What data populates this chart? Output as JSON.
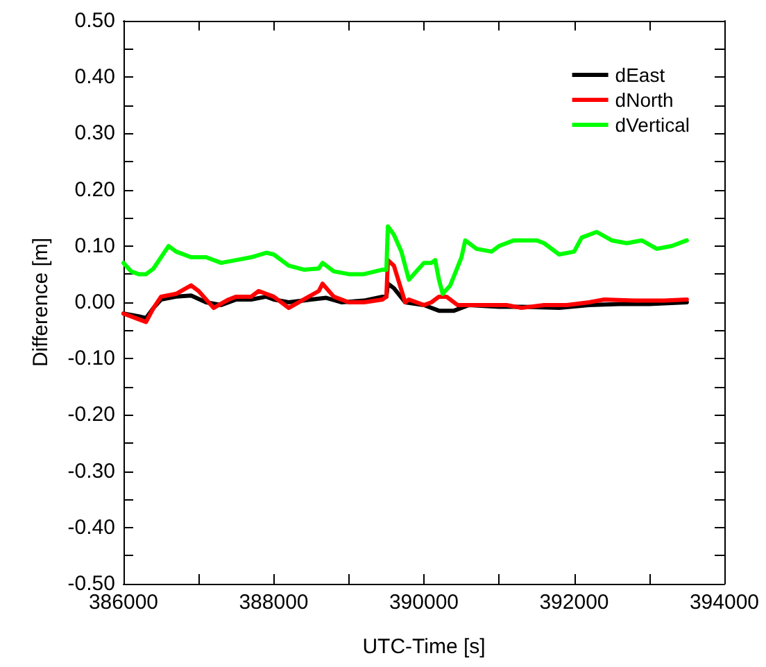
{
  "chart_data": {
    "type": "line",
    "xlabel": "UTC-Time [s]",
    "ylabel": "Difference [m]",
    "xlim": [
      386000,
      394000
    ],
    "xticks": [
      386000,
      {
        "value": 387000,
        "label": null
      },
      388000,
      {
        "value": 389000,
        "label": null
      },
      390000,
      {
        "value": 391000,
        "label": null
      },
      392000,
      {
        "value": 393000,
        "label": null
      },
      394000
    ],
    "ylim": [
      -0.5,
      0.5
    ],
    "yticks": [
      {
        "value": -0.5,
        "label": "-0.50"
      },
      {
        "value": -0.45,
        "label": null
      },
      {
        "value": -0.4,
        "label": "-0.40"
      },
      {
        "value": -0.35,
        "label": null
      },
      {
        "value": -0.3,
        "label": "-0.30"
      },
      {
        "value": -0.25,
        "label": null
      },
      {
        "value": -0.2,
        "label": "-0.20"
      },
      {
        "value": -0.15,
        "label": null
      },
      {
        "value": -0.1,
        "label": "-0.10"
      },
      {
        "value": -0.05,
        "label": null
      },
      {
        "value": 0,
        "label": "0.00"
      },
      {
        "value": 0.05,
        "label": null
      },
      {
        "value": 0.1,
        "label": "0.10"
      },
      {
        "value": 0.15,
        "label": null
      },
      {
        "value": 0.2,
        "label": "0.20"
      },
      {
        "value": 0.25,
        "label": null
      },
      {
        "value": 0.3,
        "label": "0.30"
      },
      {
        "value": 0.35,
        "label": null
      },
      {
        "value": 0.4,
        "label": "0.40"
      },
      {
        "value": 0.45,
        "label": null
      },
      {
        "value": 0.5,
        "label": "0.50"
      }
    ],
    "grid": false,
    "legend": "top right",
    "marker": "none",
    "line_style": "solid",
    "series": [
      {
        "name": "dEast",
        "color": "#000000",
        "x": [
          386000,
          386200,
          386300,
          386400,
          386500,
          386700,
          386900,
          387100,
          387300,
          387500,
          387700,
          387900,
          388000,
          388200,
          388500,
          388700,
          388900,
          389200,
          389450,
          389500,
          389520,
          389600,
          389750,
          390000,
          390200,
          390400,
          390600,
          391000,
          391300,
          391800,
          392200,
          392600,
          393000,
          393500
        ],
        "values": [
          -0.02,
          -0.025,
          -0.028,
          -0.01,
          0.005,
          0.01,
          0.012,
          0.0,
          -0.005,
          0.005,
          0.005,
          0.01,
          0.005,
          0.0,
          0.005,
          0.008,
          0.0,
          0.003,
          0.01,
          0.01,
          0.033,
          0.025,
          0.0,
          -0.005,
          -0.015,
          -0.015,
          -0.005,
          -0.008,
          -0.008,
          -0.01,
          -0.005,
          -0.003,
          -0.003,
          0.0
        ]
      },
      {
        "name": "dNorth",
        "color": "#ff0000",
        "x": [
          386000,
          386200,
          386300,
          386400,
          386500,
          386700,
          386900,
          387000,
          387200,
          387400,
          387500,
          387700,
          387800,
          388000,
          388200,
          388400,
          388600,
          388650,
          388800,
          389000,
          389200,
          389450,
          389500,
          389520,
          389600,
          389750,
          389800,
          389900,
          390000,
          390100,
          390200,
          390300,
          390450,
          390700,
          390900,
          391100,
          391300,
          391600,
          391900,
          392200,
          392400,
          392800,
          393200,
          393500
        ],
        "values": [
          -0.02,
          -0.03,
          -0.035,
          -0.01,
          0.01,
          0.015,
          0.03,
          0.02,
          -0.01,
          0.005,
          0.01,
          0.01,
          0.02,
          0.01,
          -0.01,
          0.005,
          0.02,
          0.033,
          0.01,
          0.0,
          0.0,
          0.005,
          0.01,
          0.075,
          0.065,
          0.0,
          0.005,
          0.0,
          -0.005,
          0.0,
          0.01,
          0.01,
          -0.005,
          -0.005,
          -0.005,
          -0.005,
          -0.01,
          -0.005,
          -0.005,
          0.0,
          0.005,
          0.003,
          0.003,
          0.005
        ]
      },
      {
        "name": "dVertical",
        "color": "#00ff00",
        "x": [
          386000,
          386100,
          386200,
          386300,
          386400,
          386550,
          386600,
          386700,
          386900,
          387100,
          387300,
          387500,
          387700,
          387900,
          388000,
          388200,
          388400,
          388600,
          388650,
          388800,
          389000,
          389200,
          389450,
          389500,
          389520,
          389600,
          389700,
          389800,
          389900,
          390000,
          390100,
          390150,
          390200,
          390250,
          390350,
          390500,
          390550,
          390700,
          390900,
          391000,
          391200,
          391500,
          391600,
          391800,
          392000,
          392100,
          392300,
          392500,
          392700,
          392900,
          393100,
          393300,
          393500
        ],
        "values": [
          0.07,
          0.055,
          0.05,
          0.05,
          0.06,
          0.09,
          0.1,
          0.09,
          0.08,
          0.08,
          0.07,
          0.075,
          0.08,
          0.088,
          0.085,
          0.065,
          0.058,
          0.06,
          0.07,
          0.055,
          0.05,
          0.05,
          0.058,
          0.058,
          0.135,
          0.12,
          0.09,
          0.04,
          0.055,
          0.07,
          0.07,
          0.075,
          0.04,
          0.015,
          0.03,
          0.08,
          0.11,
          0.095,
          0.09,
          0.1,
          0.11,
          0.11,
          0.105,
          0.085,
          0.09,
          0.115,
          0.125,
          0.11,
          0.105,
          0.11,
          0.095,
          0.1,
          0.11
        ]
      }
    ]
  }
}
